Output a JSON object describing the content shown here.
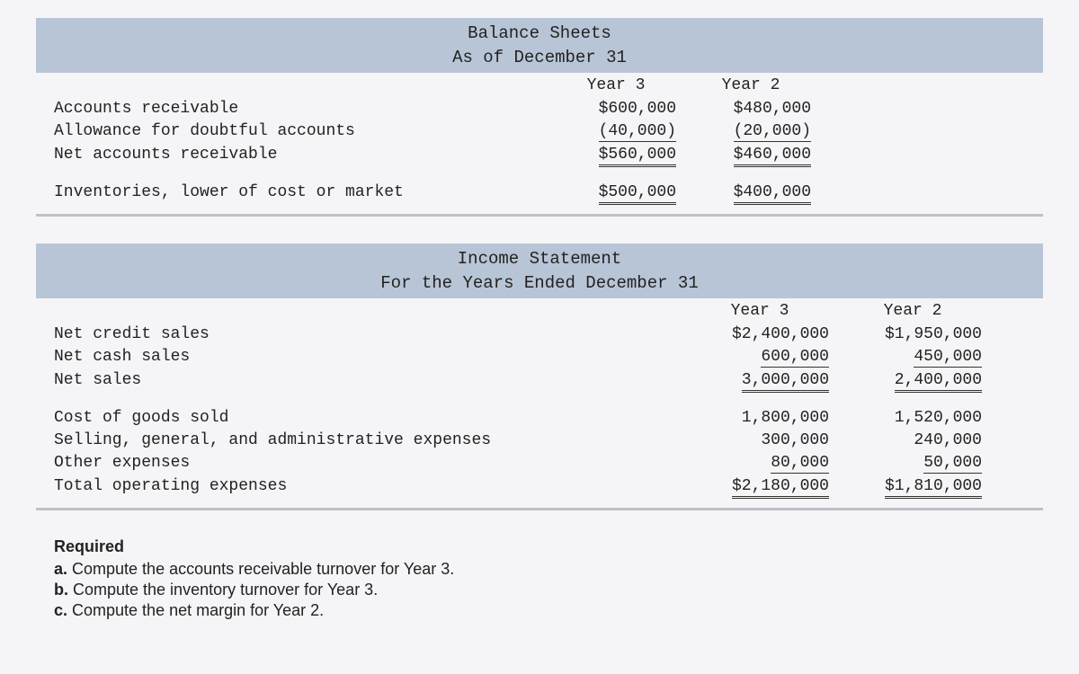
{
  "balance_sheet": {
    "title1": "Balance Sheets",
    "title2": "As of December 31",
    "col_headers": [
      "Year 3",
      "Year 2"
    ],
    "rows": [
      {
        "label": "Accounts receivable",
        "y3": "$600,000",
        "y2": "$480,000",
        "style": "none"
      },
      {
        "label": "Allowance for doubtful accounts",
        "y3": "(40,000)",
        "y2": "(20,000)",
        "style": "underline"
      },
      {
        "label": "Net accounts receivable",
        "y3": "$560,000",
        "y2": "$460,000",
        "style": "double",
        "gap_after": true
      },
      {
        "label": "Inventories, lower of cost or market",
        "y3": "$500,000",
        "y2": "$400,000",
        "style": "double"
      }
    ]
  },
  "income_statement": {
    "title1": "Income Statement",
    "title2": "For the Years Ended December 31",
    "col_headers": [
      "Year 3",
      "Year 2"
    ],
    "rows": [
      {
        "label": "Net credit sales",
        "y3": "$2,400,000",
        "y2": "$1,950,000",
        "style": "none"
      },
      {
        "label": "Net cash sales",
        "y3": "600,000",
        "y2": "450,000",
        "style": "underline"
      },
      {
        "label": "Net sales",
        "y3": "3,000,000",
        "y2": "2,400,000",
        "style": "double",
        "gap_after": true
      },
      {
        "label": "Cost of goods sold",
        "y3": "1,800,000",
        "y2": "1,520,000",
        "style": "none"
      },
      {
        "label": "Selling, general, and administrative expenses",
        "y3": "300,000",
        "y2": "240,000",
        "style": "none"
      },
      {
        "label": "Other expenses",
        "y3": "80,000",
        "y2": "50,000",
        "style": "underline"
      },
      {
        "label": "Total operating expenses",
        "y3": "$2,180,000",
        "y2": "$1,810,000",
        "style": "double"
      }
    ]
  },
  "required": {
    "title": "Required",
    "items": [
      {
        "letter": "a.",
        "text": "Compute the accounts receivable turnover for Year 3."
      },
      {
        "letter": "b.",
        "text": "Compute the inventory turnover for Year 3."
      },
      {
        "letter": "c.",
        "text": "Compute the net margin for Year 2."
      }
    ]
  },
  "styling": {
    "header_band_bg": "#b8c5d6",
    "body_bg": "#f5f5f7",
    "text_color": "#222",
    "divider_color": "#c0c0c8",
    "mono_font": "Courier New",
    "sans_font": "Arial",
    "base_fontsize": 18
  }
}
